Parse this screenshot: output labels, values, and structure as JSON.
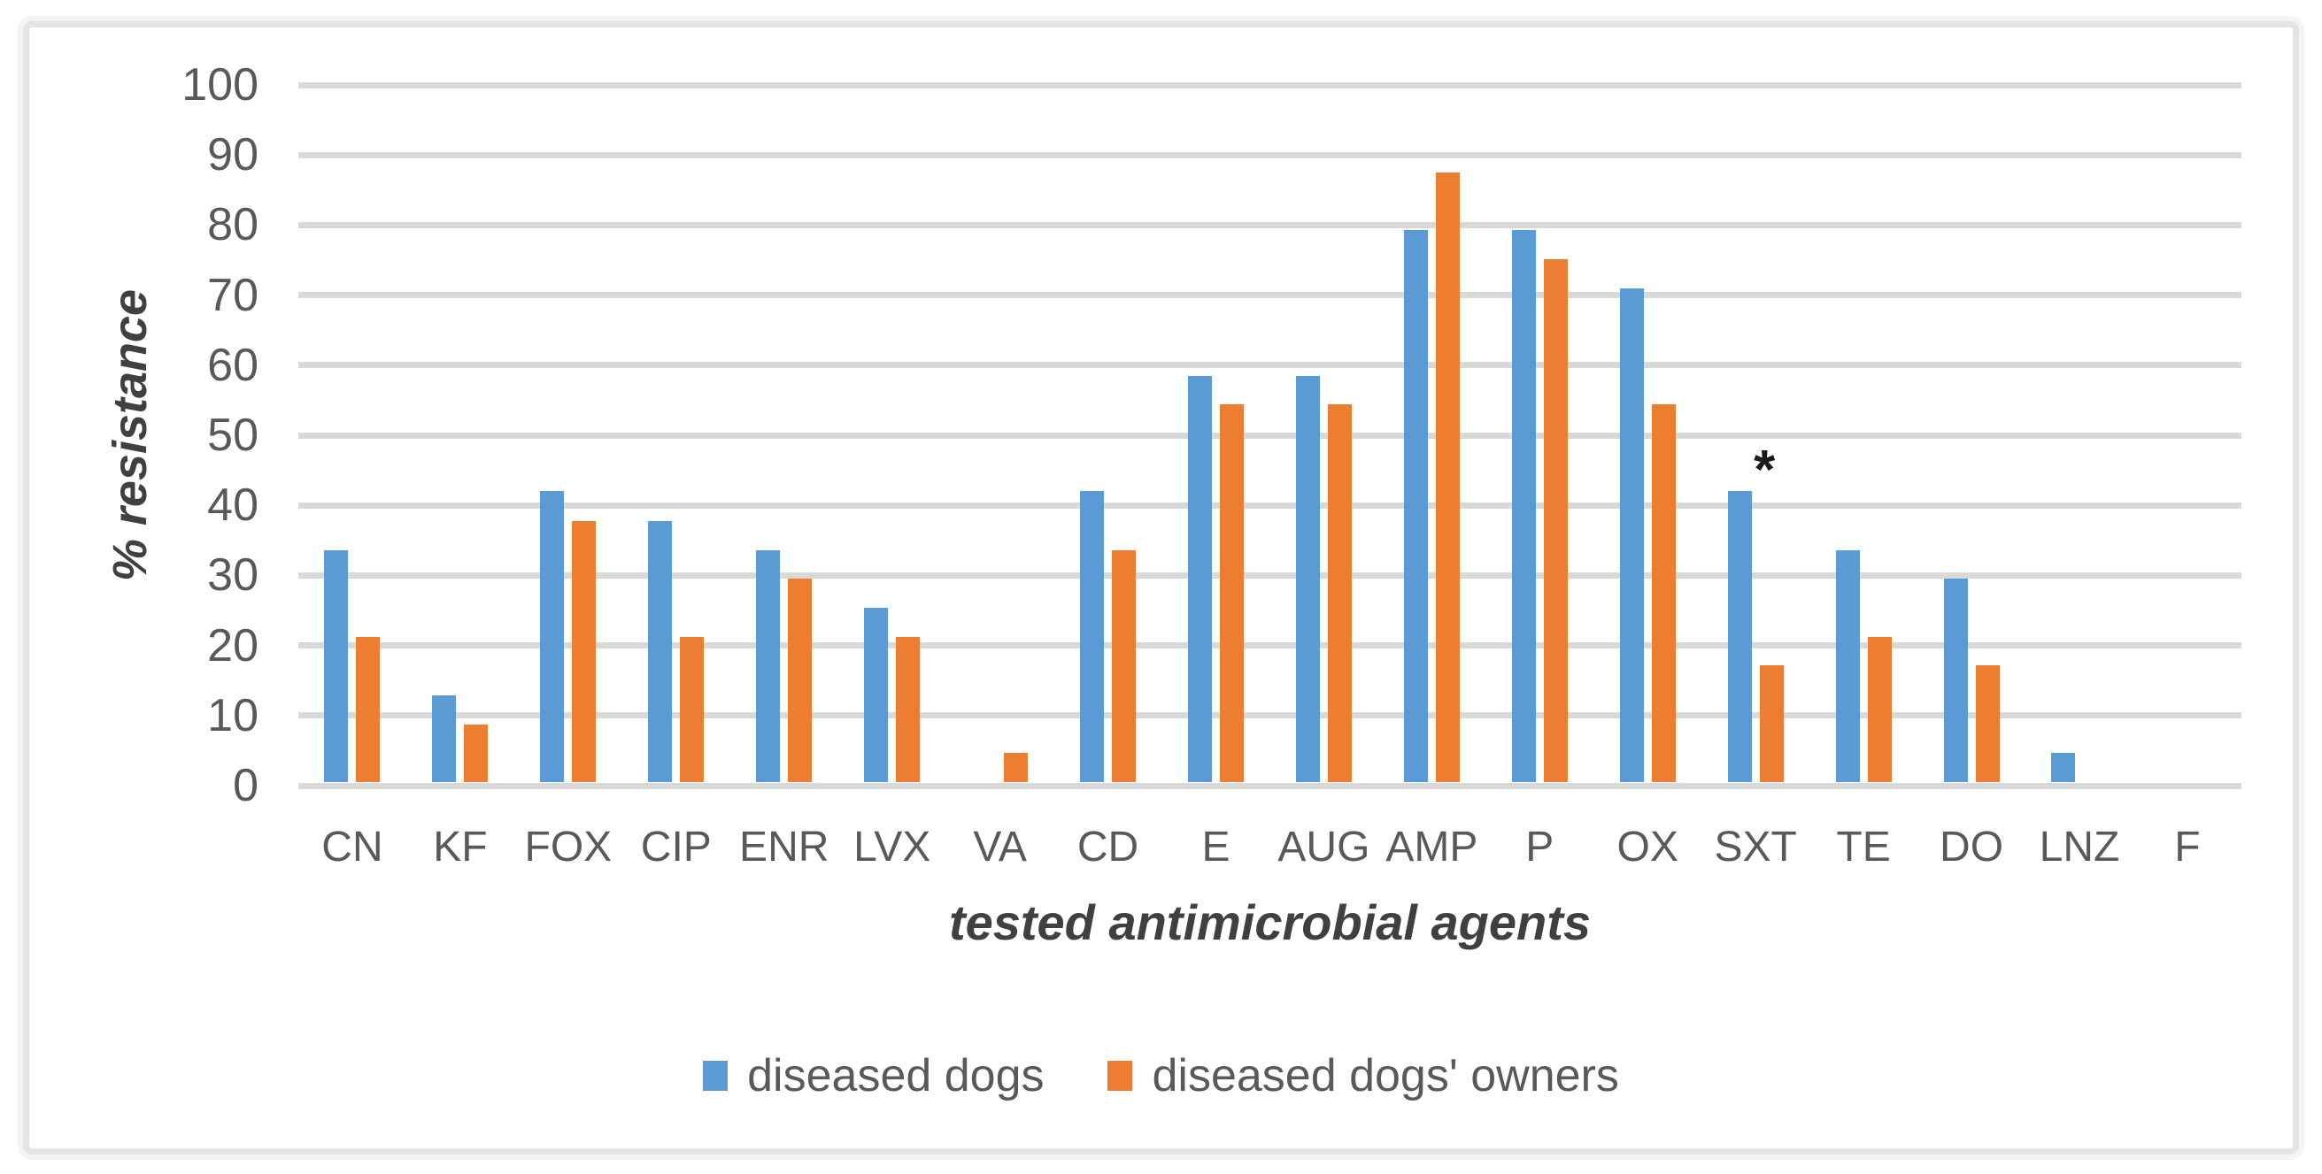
{
  "figure": {
    "background": "#ffffff",
    "frame_border_color": "#e4e4e4"
  },
  "chart_data": {
    "type": "bar",
    "title": "",
    "xlabel": "tested antimicrobial agents",
    "ylabel": "% resistance",
    "ylim": [
      0,
      100
    ],
    "yticks": [
      0,
      10,
      20,
      30,
      40,
      50,
      60,
      70,
      80,
      90,
      100
    ],
    "grid": "horizontal",
    "gridline_color": "#d9d9d9",
    "axis_text_color": "#595959",
    "axis_title_color": "#404040",
    "legend_position": "bottom",
    "categories": [
      "CN",
      "KF",
      "FOX",
      "CIP",
      "ENR",
      "LVX",
      "VA",
      "CD",
      "E",
      "AUG",
      "AMP",
      "P",
      "OX",
      "SXT",
      "TE",
      "DO",
      "LNZ",
      "F"
    ],
    "series": [
      {
        "name": "diseased dogs",
        "color": "#5b9bd5",
        "values": [
          33.3,
          12.5,
          41.7,
          37.5,
          33.3,
          25.0,
          0,
          41.7,
          58.3,
          58.3,
          79.2,
          79.2,
          70.8,
          41.7,
          33.3,
          29.2,
          4.2,
          0
        ]
      },
      {
        "name": "diseased dogs' owners",
        "color": "#ed7d31",
        "values": [
          20.8,
          8.3,
          37.5,
          20.8,
          29.2,
          20.8,
          4.2,
          33.3,
          54.2,
          54.2,
          87.5,
          75.0,
          54.2,
          16.7,
          20.8,
          16.7,
          0,
          0
        ]
      }
    ],
    "annotations": [
      {
        "text": "*",
        "category": "SXT",
        "value": 41,
        "dx": 10
      }
    ]
  }
}
